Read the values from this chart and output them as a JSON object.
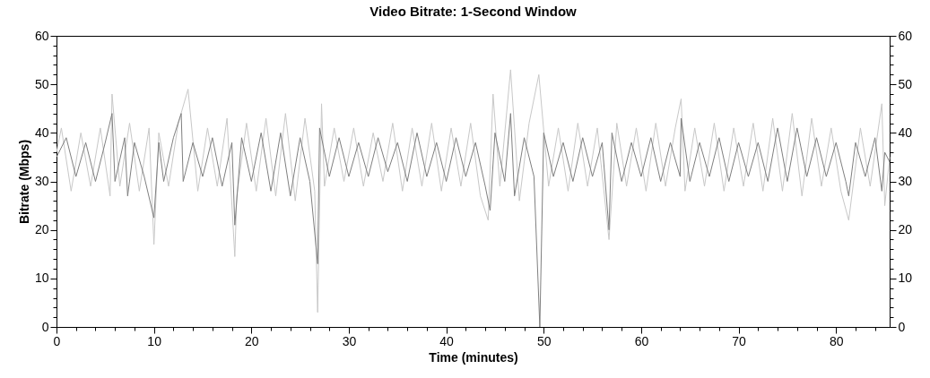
{
  "chart_data": {
    "type": "line",
    "title": "Video Bitrate: 1-Second Window",
    "xlabel": "Time (minutes)",
    "ylabel": "Bitrate (Mbps)",
    "xlim": [
      0,
      85.5
    ],
    "ylim": [
      0,
      60
    ],
    "y2lim": [
      0,
      60
    ],
    "xticks": [
      0,
      {
        "value": 2,
        "label": null
      },
      {
        "value": 4,
        "label": null
      },
      {
        "value": 6,
        "label": null
      },
      {
        "value": 8,
        "label": null
      },
      10,
      {
        "value": 12,
        "label": null
      },
      {
        "value": 14,
        "label": null
      },
      {
        "value": 16,
        "label": null
      },
      {
        "value": 18,
        "label": null
      },
      20,
      {
        "value": 22,
        "label": null
      },
      {
        "value": 24,
        "label": null
      },
      {
        "value": 26,
        "label": null
      },
      {
        "value": 28,
        "label": null
      },
      30,
      {
        "value": 32,
        "label": null
      },
      {
        "value": 34,
        "label": null
      },
      {
        "value": 36,
        "label": null
      },
      {
        "value": 38,
        "label": null
      },
      40,
      {
        "value": 42,
        "label": null
      },
      {
        "value": 44,
        "label": null
      },
      {
        "value": 46,
        "label": null
      },
      {
        "value": 48,
        "label": null
      },
      50,
      {
        "value": 52,
        "label": null
      },
      {
        "value": 54,
        "label": null
      },
      {
        "value": 56,
        "label": null
      },
      {
        "value": 58,
        "label": null
      },
      60,
      {
        "value": 62,
        "label": null
      },
      {
        "value": 64,
        "label": null
      },
      {
        "value": 66,
        "label": null
      },
      {
        "value": 68,
        "label": null
      },
      70,
      {
        "value": 72,
        "label": null
      },
      {
        "value": 74,
        "label": null
      },
      {
        "value": 76,
        "label": null
      },
      {
        "value": 78,
        "label": null
      },
      80,
      {
        "value": 82,
        "label": null
      },
      {
        "value": 84,
        "label": null
      }
    ],
    "yticks": [
      0,
      {
        "value": 2,
        "label": null
      },
      {
        "value": 4,
        "label": null
      },
      {
        "value": 6,
        "label": null
      },
      {
        "value": 8,
        "label": null
      },
      10,
      {
        "value": 12,
        "label": null
      },
      {
        "value": 14,
        "label": null
      },
      {
        "value": 16,
        "label": null
      },
      {
        "value": 18,
        "label": null
      },
      20,
      {
        "value": 22,
        "label": null
      },
      {
        "value": 24,
        "label": null
      },
      {
        "value": 26,
        "label": null
      },
      {
        "value": 28,
        "label": null
      },
      30,
      {
        "value": 32,
        "label": null
      },
      {
        "value": 34,
        "label": null
      },
      {
        "value": 36,
        "label": null
      },
      {
        "value": 38,
        "label": null
      },
      40,
      {
        "value": 42,
        "label": null
      },
      {
        "value": 44,
        "label": null
      },
      {
        "value": 46,
        "label": null
      },
      {
        "value": 48,
        "label": null
      },
      50,
      {
        "value": 52,
        "label": null
      },
      {
        "value": 54,
        "label": null
      },
      {
        "value": 56,
        "label": null
      },
      {
        "value": 58,
        "label": null
      },
      60
    ],
    "y2ticks": [
      0,
      {
        "value": 2,
        "label": null
      },
      {
        "value": 4,
        "label": null
      },
      {
        "value": 6,
        "label": null
      },
      {
        "value": 8,
        "label": null
      },
      10,
      {
        "value": 12,
        "label": null
      },
      {
        "value": 14,
        "label": null
      },
      {
        "value": 16,
        "label": null
      },
      {
        "value": 18,
        "label": null
      },
      20,
      {
        "value": 22,
        "label": null
      },
      {
        "value": 24,
        "label": null
      },
      {
        "value": 26,
        "label": null
      },
      {
        "value": 28,
        "label": null
      },
      30,
      {
        "value": 32,
        "label": null
      },
      {
        "value": 34,
        "label": null
      },
      {
        "value": 36,
        "label": null
      },
      {
        "value": 38,
        "label": null
      },
      40,
      {
        "value": 42,
        "label": null
      },
      {
        "value": 44,
        "label": null
      },
      {
        "value": 46,
        "label": null
      },
      {
        "value": 48,
        "label": null
      },
      50,
      {
        "value": 52,
        "label": null
      },
      {
        "value": 54,
        "label": null
      },
      {
        "value": 56,
        "label": null
      },
      {
        "value": 58,
        "label": null
      },
      60
    ],
    "grid": false,
    "marker": "none",
    "line_style": "solid",
    "series": [
      {
        "color": "#c8c8c8",
        "x": [
          0,
          0.5,
          1.5,
          2.5,
          3.5,
          4.5,
          5.5,
          5.7,
          6.5,
          7.5,
          8.5,
          9.5,
          10.0,
          10.5,
          11.5,
          12.5,
          13.5,
          14.5,
          15.5,
          16.5,
          17.5,
          18.3,
          18.5,
          19.5,
          20.5,
          21.5,
          22.5,
          23.5,
          24.5,
          25.5,
          26.5,
          26.8,
          27.2,
          27.5,
          28.5,
          29.5,
          30.5,
          31.5,
          32.5,
          33.5,
          34.5,
          35.5,
          36.5,
          37.5,
          38.5,
          39.5,
          40.5,
          41.5,
          42.5,
          43.5,
          44.3,
          44.8,
          45.5,
          46.6,
          47.5,
          48.5,
          49.5,
          50.5,
          51.5,
          52.5,
          53.5,
          54.5,
          55.5,
          56.7,
          57.5,
          58.5,
          59.5,
          60.5,
          61.5,
          62.5,
          63.5,
          64.1,
          64.5,
          65.5,
          66.5,
          67.5,
          68.5,
          69.5,
          70.5,
          71.5,
          72.5,
          73.5,
          74.5,
          75.5,
          76.5,
          77.5,
          78.5,
          79.5,
          80.5,
          81.3,
          82.5,
          83.5,
          84.7,
          85,
          85.5
        ],
        "values": [
          36,
          41,
          28,
          40,
          29,
          41,
          27,
          48,
          29,
          42,
          28,
          41,
          17,
          40,
          29,
          42,
          49,
          28,
          41,
          29,
          43,
          14.5,
          27,
          42,
          28,
          43,
          27,
          44,
          26,
          43,
          28,
          3,
          46,
          29,
          41,
          30,
          41,
          29,
          40,
          30,
          42,
          28,
          41,
          29,
          42,
          28,
          41,
          29,
          42,
          27,
          22,
          48,
          29,
          53,
          26,
          42,
          52,
          29,
          41,
          28,
          42,
          29,
          41,
          18,
          42,
          29,
          41,
          28,
          42,
          29,
          41,
          47,
          28,
          41,
          29,
          42,
          28,
          41,
          29,
          42,
          28,
          43,
          28,
          44,
          27,
          43,
          29,
          41,
          28,
          22,
          41,
          29,
          46,
          25,
          35
        ]
      },
      {
        "color": "#7f7f7f",
        "x": [
          0,
          1,
          2,
          3,
          4,
          5,
          5.7,
          6,
          7,
          7.3,
          8,
          9,
          10,
          10.5,
          11,
          12,
          12.8,
          13,
          14,
          15,
          16,
          17,
          18,
          18.3,
          19,
          20,
          21,
          22,
          23,
          24,
          25,
          26,
          26.8,
          27,
          28,
          29,
          30,
          31,
          32,
          33,
          34,
          35,
          36,
          37,
          38,
          39,
          40,
          41,
          42,
          43,
          44,
          44.5,
          45,
          46,
          46.6,
          47,
          48,
          49,
          49.6,
          50,
          51,
          52,
          53,
          54,
          55,
          56,
          56.7,
          57,
          58,
          59,
          60,
          61,
          62,
          63,
          64,
          64.1,
          65,
          66,
          67,
          68,
          69,
          70,
          71,
          72,
          73,
          74,
          75,
          76,
          77,
          78,
          79,
          80,
          81,
          81.3,
          82,
          83,
          84,
          84.7,
          85,
          85.5
        ],
        "values": [
          35,
          39,
          31,
          38,
          30,
          38,
          44,
          30,
          39,
          27,
          38,
          31,
          22.5,
          38,
          30,
          39,
          44,
          30,
          38,
          31,
          39,
          29,
          38,
          21,
          39,
          30,
          40,
          28,
          40,
          27,
          39,
          30,
          13,
          41,
          31,
          39,
          31,
          38,
          31,
          39,
          32,
          38,
          30,
          40,
          31,
          38,
          30,
          39,
          31,
          38,
          29,
          24,
          40,
          30,
          44,
          27,
          39,
          31,
          0,
          40,
          31,
          38,
          30,
          39,
          31,
          38,
          20,
          40,
          30,
          38,
          31,
          39,
          30,
          38,
          31,
          43,
          30,
          38,
          31,
          39,
          30,
          38,
          31,
          38,
          30,
          41,
          30,
          41,
          31,
          39,
          31,
          38,
          30,
          27,
          38,
          31,
          39,
          28,
          36,
          34
        ]
      }
    ]
  }
}
